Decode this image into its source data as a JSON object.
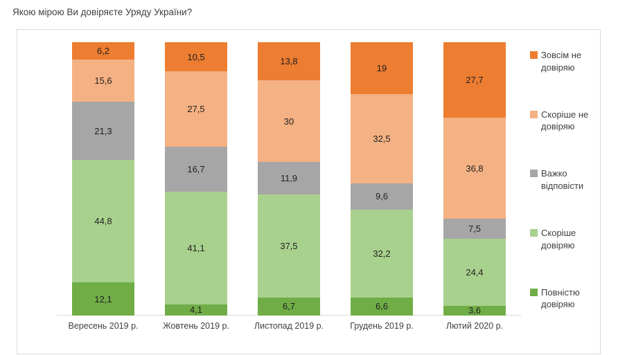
{
  "title": "Якою мірою Ви довіряєте Уряду України?",
  "chart_data": {
    "type": "bar",
    "stacked": true,
    "orientation": "vertical",
    "title": "Якою мірою Ви довіряєте Уряду України?",
    "categories": [
      "Вересень 2019 р.",
      "Жовтень 2019 р.",
      "Листопад 2019 р.",
      "Грудень 2019 р.",
      "Лютий 2020 р."
    ],
    "series": [
      {
        "name": "Повністю довіряю",
        "color": "#70AD47",
        "values": [
          12.1,
          4.1,
          6.7,
          6.6,
          3.6
        ]
      },
      {
        "name": "Скоріше довіряю",
        "color": "#A9D18E",
        "values": [
          44.8,
          41.1,
          37.5,
          32.2,
          24.4
        ]
      },
      {
        "name": "Важко відповісти",
        "color": "#A6A6A6",
        "values": [
          21.3,
          16.7,
          11.9,
          9.6,
          7.5
        ]
      },
      {
        "name": "Скоріше не довіряю",
        "color": "#F4B183",
        "values": [
          15.6,
          27.5,
          30,
          32.5,
          36.8
        ]
      },
      {
        "name": "Зовсім не довіряю",
        "color": "#ED7D31",
        "values": [
          6.2,
          10.5,
          13.8,
          19,
          27.7
        ]
      }
    ],
    "series_order": "bottom-to-top",
    "legend_position": "right",
    "legend_order_top_to_bottom": [
      "Зовсім не довіряю",
      "Скоріше не довіряю",
      "Важко відповісти",
      "Скоріше довіряю",
      "Повністю довіряю"
    ],
    "data_labels": true,
    "decimal_separator": ",",
    "ylim": [
      0,
      100
    ],
    "grid": false,
    "axis_line_color": "#D9D9D9",
    "border_color": "#D9D9D9"
  }
}
